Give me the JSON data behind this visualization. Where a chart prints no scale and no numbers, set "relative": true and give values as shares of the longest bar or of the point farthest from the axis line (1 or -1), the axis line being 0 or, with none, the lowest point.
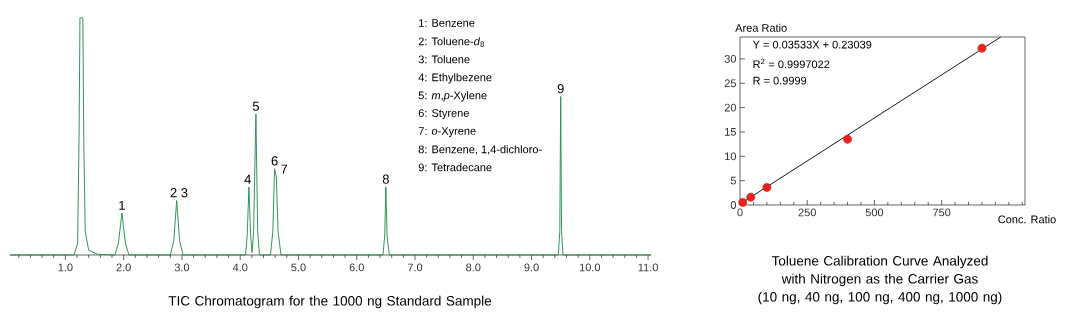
{
  "chart_data": [
    {
      "type": "line",
      "relative": true,
      "title": "TIC Chromatogram for the 1000 ng Standard Sample",
      "xlim": [
        0.05,
        11.05
      ],
      "xticks": [
        {
          "value": 0.2,
          "label": null
        },
        {
          "value": 0.4,
          "label": null
        },
        {
          "value": 0.6,
          "label": null
        },
        {
          "value": 0.8,
          "label": null
        },
        {
          "value": 1,
          "label": "1.0"
        },
        {
          "value": 1.2,
          "label": null
        },
        {
          "value": 1.4,
          "label": null
        },
        {
          "value": 1.6,
          "label": null
        },
        {
          "value": 1.8,
          "label": null
        },
        {
          "value": 2,
          "label": "2.0"
        },
        {
          "value": 2.2,
          "label": null
        },
        {
          "value": 2.4,
          "label": null
        },
        {
          "value": 2.6,
          "label": null
        },
        {
          "value": 2.8,
          "label": null
        },
        {
          "value": 3,
          "label": "3.0"
        },
        {
          "value": 3.2,
          "label": null
        },
        {
          "value": 3.4,
          "label": null
        },
        {
          "value": 3.6,
          "label": null
        },
        {
          "value": 3.8,
          "label": null
        },
        {
          "value": 4,
          "label": "4.0"
        },
        {
          "value": 4.2,
          "label": null
        },
        {
          "value": 4.4,
          "label": null
        },
        {
          "value": 4.6,
          "label": null
        },
        {
          "value": 4.8,
          "label": null
        },
        {
          "value": 5,
          "label": "5.0"
        },
        {
          "value": 5.2,
          "label": null
        },
        {
          "value": 5.4,
          "label": null
        },
        {
          "value": 5.6,
          "label": null
        },
        {
          "value": 5.8,
          "label": null
        },
        {
          "value": 6,
          "label": "6.0"
        },
        {
          "value": 6.2,
          "label": null
        },
        {
          "value": 6.4,
          "label": null
        },
        {
          "value": 6.6,
          "label": null
        },
        {
          "value": 6.8,
          "label": null
        },
        {
          "value": 7,
          "label": "7.0"
        },
        {
          "value": 7.2,
          "label": null
        },
        {
          "value": 7.4,
          "label": null
        },
        {
          "value": 7.6,
          "label": null
        },
        {
          "value": 7.8,
          "label": null
        },
        {
          "value": 8,
          "label": "8.0"
        },
        {
          "value": 8.2,
          "label": null
        },
        {
          "value": 8.4,
          "label": null
        },
        {
          "value": 8.6,
          "label": null
        },
        {
          "value": 8.8,
          "label": null
        },
        {
          "value": 9,
          "label": "9.0"
        },
        {
          "value": 9.2,
          "label": null
        },
        {
          "value": 9.4,
          "label": null
        },
        {
          "value": 9.6,
          "label": null
        },
        {
          "value": 9.8,
          "label": null
        },
        {
          "value": 10,
          "label": "10.0"
        },
        {
          "value": 10.2,
          "label": null
        },
        {
          "value": 10.4,
          "label": null
        },
        {
          "value": 10.6,
          "label": null
        },
        {
          "value": 10.8,
          "label": null
        },
        {
          "value": 11,
          "label": "11.0"
        }
      ],
      "series": [
        {
          "color": "#1e8a4a",
          "x": [
            0.05,
            1.15,
            1.21,
            1.235,
            1.25,
            1.3,
            1.315,
            1.34,
            1.4,
            1.55,
            1.85,
            1.91,
            1.97,
            2.03,
            2.09,
            2.8,
            2.86,
            2.91,
            2.96,
            3.02,
            4.09,
            4.12,
            4.15,
            4.18,
            4.205,
            4.23,
            4.27,
            4.3,
            4.33,
            4.52,
            4.56,
            4.59,
            4.62,
            4.65,
            4.7,
            6.45,
            6.48,
            6.5,
            6.52,
            6.56,
            9.46,
            9.485,
            9.5,
            9.515,
            9.54,
            11.05
          ],
          "values": [
            0,
            0,
            0.05,
            0.5,
            1,
            1,
            0.5,
            0.1,
            0.02,
            0.003,
            0,
            0.05,
            0.177,
            0.05,
            0,
            0,
            0.06,
            0.23,
            0.06,
            0,
            0,
            0.08,
            0.287,
            0.08,
            0.01,
            0.1,
            0.595,
            0.1,
            0,
            0,
            0.1,
            0.364,
            0.33,
            0.1,
            0,
            0,
            0.08,
            0.287,
            0.08,
            0,
            0,
            0.1,
            0.669,
            0.1,
            0,
            0
          ]
        }
      ],
      "annotations": [
        {
          "text": "1",
          "x": 1.97,
          "y": 0.177
        },
        {
          "text": "2 3",
          "x": 2.95,
          "y": 0.23
        },
        {
          "text": "4",
          "x": 4.13,
          "y": 0.287
        },
        {
          "text": "5",
          "x": 4.27,
          "y": 0.595
        },
        {
          "text": "6",
          "x": 4.59,
          "y": 0.364
        },
        {
          "text": "7",
          "x": 4.62,
          "y": 0.33
        },
        {
          "text": "8",
          "x": 6.5,
          "y": 0.287
        },
        {
          "text": "9",
          "x": 9.5,
          "y": 0.669
        },
        "1: Benzene",
        "2: Toluene-*d*$_{8}$",
        "3: Toluene",
        "4: Ethylbezene",
        "5: *m*,*p*-Xylene",
        "6: Styrene",
        "7: *o*-Xyrene",
        "8: Benzene, 1,4-dichloro-",
        "9: Tetradecane"
      ]
    },
    {
      "type": "scatter",
      "title": "Toluene Calibration Curve Analyzed with Nitrogen as the Carrier Gas",
      "subtitle": "(10 ng, 40 ng, 100 ng, 400 ng, 1000 ng)",
      "xlabel": "Conc. Ratio",
      "ylabel": "Area Ratio",
      "xlim": [
        0,
        1060
      ],
      "ylim": [
        0,
        34.5
      ],
      "xticks": [
        0,
        {
          "value": 50,
          "label": null
        },
        {
          "value": 100,
          "label": null
        },
        {
          "value": 150,
          "label": null
        },
        {
          "value": 200,
          "label": null
        },
        250,
        {
          "value": 300,
          "label": null
        },
        {
          "value": 350,
          "label": null
        },
        {
          "value": 400,
          "label": null
        },
        {
          "value": 450,
          "label": null
        },
        500,
        {
          "value": 550,
          "label": null
        },
        {
          "value": 600,
          "label": null
        },
        {
          "value": 650,
          "label": null
        },
        {
          "value": 700,
          "label": null
        },
        750,
        {
          "value": 800,
          "label": null
        },
        {
          "value": 850,
          "label": null
        },
        {
          "value": 900,
          "label": null
        },
        {
          "value": 950,
          "label": null
        },
        {
          "value": 1000,
          "label": null
        },
        {
          "value": 1050,
          "label": null
        }
      ],
      "yticks": [
        0,
        5,
        10,
        15,
        20,
        25,
        30
      ],
      "marker": "circle",
      "series": [
        {
          "x": [
            10,
            40,
            100,
            400,
            900
          ],
          "values": [
            0.5,
            1.6,
            3.6,
            13.5,
            32.2
          ],
          "color": "#e8231f"
        },
        {
          "type": "line",
          "x": [
            0,
            970
          ],
          "values": [
            0.2,
            34.5
          ],
          "color": "#000000",
          "marker": "none"
        }
      ],
      "annotations": [
        "Y = 0.03533X + 0.23039",
        "R$^{2}$ = 0.9997022",
        "R = 0.9999"
      ]
    }
  ]
}
